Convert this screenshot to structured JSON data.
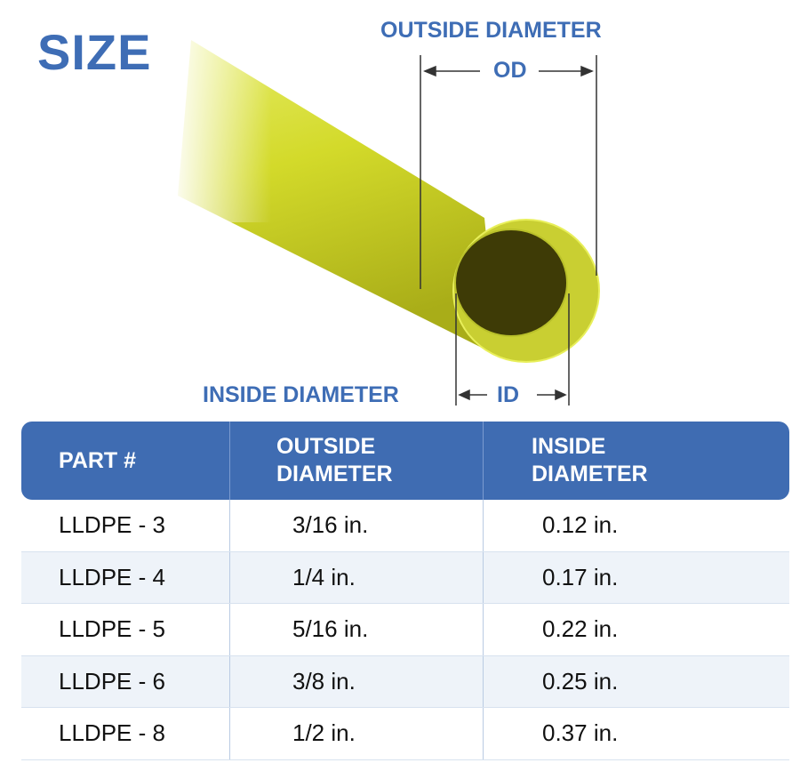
{
  "title": "SIZE",
  "diagram": {
    "outside_label": "OUTSIDE DIAMETER",
    "od_label": "OD",
    "inside_label": "INSIDE DIAMETER",
    "id_label": "ID",
    "tube_color": "#d4dc2a"
  },
  "table": {
    "headers": [
      "PART #",
      "OUTSIDE DIAMETER",
      "INSIDE DIAMETER"
    ],
    "header_lines": [
      [
        "PART #"
      ],
      [
        "OUTSIDE",
        "DIAMETER"
      ],
      [
        "INSIDE",
        "DIAMETER"
      ]
    ],
    "rows": [
      {
        "part": "LLDPE - 3",
        "od": "3/16 in.",
        "id": "0.12 in."
      },
      {
        "part": "LLDPE - 4",
        "od": "1/4 in.",
        "id": "0.17 in."
      },
      {
        "part": "LLDPE - 5",
        "od": "5/16 in.",
        "id": "0.22 in."
      },
      {
        "part": "LLDPE - 6",
        "od": "3/8 in.",
        "id": "0.25 in."
      },
      {
        "part": "LLDPE - 8",
        "od": "1/2 in.",
        "id": "0.37 in."
      }
    ],
    "header_color": "#3f6cb2"
  }
}
